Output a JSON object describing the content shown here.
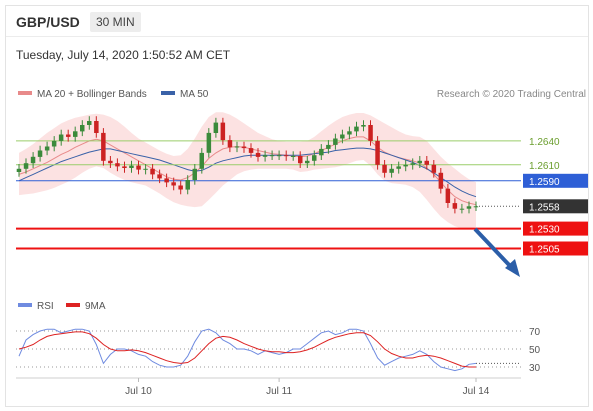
{
  "header": {
    "pair": "GBP/USD",
    "timeframe": "30 MIN"
  },
  "timestamp": "Tuesday, July 14, 2020 1:50:52 AM CET",
  "legend": {
    "ma_bb": "MA 20 + Bollinger Bands",
    "ma50": "MA 50",
    "credit": "Research © 2020 Trading Central"
  },
  "rsi_legend": {
    "rsi": "RSI",
    "ma": "9MA"
  },
  "colors": {
    "candle_up": "#3b8a3b",
    "candle_down": "#cc2222",
    "bollinger_fill": "#fbd8d8",
    "ma20": "#e88a8a",
    "ma50": "#3a62a8",
    "resistance": "#9acd6a",
    "support": "#ee1111",
    "pivot": "#2e5fd6",
    "arrow": "#2b5ea8",
    "rsi": "#6f8be0",
    "rsi_ma": "#dd2222"
  },
  "chart_data": [
    {
      "type": "candlestick",
      "title": "GBP/USD 30 MIN",
      "ylim": [
        1.2468,
        1.2675
      ],
      "x_labels": [
        "Jul 10",
        "Jul 11",
        "Jul 14"
      ],
      "x_label_index": [
        17,
        37,
        65
      ],
      "levels": [
        {
          "value": 1.264,
          "label": "1.2640",
          "kind": "resistance"
        },
        {
          "value": 1.261,
          "label": "1.2610",
          "kind": "resistance"
        },
        {
          "value": 1.259,
          "label": "1.2590",
          "kind": "pivot"
        },
        {
          "value": 1.2558,
          "label": "1.2558",
          "kind": "current"
        },
        {
          "value": 1.253,
          "label": "1.2530",
          "kind": "support"
        },
        {
          "value": 1.2505,
          "label": "1.2505",
          "kind": "support"
        }
      ],
      "close": [
        1.2605,
        1.2612,
        1.262,
        1.2628,
        1.2633,
        1.264,
        1.2648,
        1.2645,
        1.2652,
        1.266,
        1.2665,
        1.265,
        1.2615,
        1.2612,
        1.2608,
        1.2606,
        1.2609,
        1.2604,
        1.2605,
        1.2598,
        1.2593,
        1.2588,
        1.2584,
        1.2579,
        1.2591,
        1.2605,
        1.2625,
        1.265,
        1.2663,
        1.2641,
        1.2632,
        1.2633,
        1.2631,
        1.2625,
        1.262,
        1.2622,
        1.2622,
        1.2622,
        1.2621,
        1.2621,
        1.2612,
        1.2615,
        1.2622,
        1.263,
        1.2635,
        1.2643,
        1.2648,
        1.2652,
        1.2658,
        1.266,
        1.264,
        1.261,
        1.26,
        1.2605,
        1.2608,
        1.261,
        1.2612,
        1.2615,
        1.261,
        1.26,
        1.258,
        1.2562,
        1.2555,
        1.2555,
        1.2558,
        1.2558
      ],
      "ma20": [
        1.2598,
        1.2601,
        1.2605,
        1.2609,
        1.2613,
        1.2618,
        1.2623,
        1.2627,
        1.2632,
        1.2636,
        1.264,
        1.2642,
        1.264,
        1.2635,
        1.263,
        1.2625,
        1.262,
        1.2615,
        1.261,
        1.2605,
        1.26,
        1.2595,
        1.2592,
        1.2591,
        1.2594,
        1.26,
        1.2608,
        1.2618,
        1.2625,
        1.263,
        1.2632,
        1.2633,
        1.2632,
        1.263,
        1.2628,
        1.2626,
        1.2624,
        1.2623,
        1.2622,
        1.2621,
        1.262,
        1.2621,
        1.2624,
        1.2628,
        1.2632,
        1.2636,
        1.264,
        1.2643,
        1.2645,
        1.2645,
        1.264,
        1.2632,
        1.2626,
        1.2622,
        1.2619,
        1.2617,
        1.2615,
        1.2612,
        1.2606,
        1.2598,
        1.2588,
        1.2578,
        1.257,
        1.2565,
        1.2562,
        1.256
      ],
      "ma50": [
        1.259,
        1.2594,
        1.2598,
        1.2602,
        1.2606,
        1.261,
        1.2614,
        1.2617,
        1.262,
        1.2623,
        1.2626,
        1.2628,
        1.263,
        1.263,
        1.2628,
        1.2626,
        1.2624,
        1.2622,
        1.262,
        1.2618,
        1.2616,
        1.2613,
        1.261,
        1.2607,
        1.2604,
        1.2602,
        1.2603,
        1.2607,
        1.2612,
        1.2615,
        1.2617,
        1.2619,
        1.2621,
        1.2622,
        1.2622,
        1.2622,
        1.2622,
        1.2622,
        1.2622,
        1.2622,
        1.2622,
        1.2623,
        1.2624,
        1.2625,
        1.2626,
        1.2628,
        1.2629,
        1.263,
        1.2631,
        1.2631,
        1.263,
        1.2628,
        1.2625,
        1.2622,
        1.2619,
        1.2616,
        1.2613,
        1.2609,
        1.2605,
        1.26,
        1.2594,
        1.2588,
        1.2582,
        1.2577,
        1.2573,
        1.257
      ],
      "bollinger_upper": [
        1.2625,
        1.263,
        1.2636,
        1.2643,
        1.265,
        1.2656,
        1.2662,
        1.2666,
        1.2669,
        1.2671,
        1.2673,
        1.2674,
        1.2673,
        1.267,
        1.2665,
        1.2658,
        1.265,
        1.2643,
        1.2638,
        1.2633,
        1.2628,
        1.2624,
        1.2621,
        1.2622,
        1.263,
        1.2643,
        1.2658,
        1.267,
        1.2676,
        1.2676,
        1.2673,
        1.2668,
        1.2662,
        1.2656,
        1.265,
        1.2646,
        1.2642,
        1.264,
        1.2639,
        1.2639,
        1.2639,
        1.264,
        1.2645,
        1.2652,
        1.2659,
        1.2665,
        1.267,
        1.2673,
        1.2675,
        1.2675,
        1.2672,
        1.2667,
        1.2662,
        1.2657,
        1.2652,
        1.2648,
        1.2646,
        1.2645,
        1.264,
        1.263,
        1.262,
        1.2612,
        1.2605,
        1.2598,
        1.2592,
        1.2588
      ],
      "bollinger_lower": [
        1.2572,
        1.2573,
        1.2574,
        1.2576,
        1.2578,
        1.2581,
        1.2585,
        1.2589,
        1.2594,
        1.26,
        1.2605,
        1.2608,
        1.2606,
        1.26,
        1.2595,
        1.2591,
        1.2588,
        1.2586,
        1.2584,
        1.2579,
        1.2574,
        1.2568,
        1.2563,
        1.256,
        1.2558,
        1.2557,
        1.2558,
        1.2566,
        1.2575,
        1.2584,
        1.2591,
        1.2598,
        1.2602,
        1.2604,
        1.2605,
        1.2605,
        1.2605,
        1.2605,
        1.2605,
        1.2604,
        1.2601,
        1.2602,
        1.2604,
        1.2605,
        1.2606,
        1.2607,
        1.2609,
        1.2612,
        1.2615,
        1.2616,
        1.2609,
        1.2598,
        1.259,
        1.2587,
        1.2586,
        1.2585,
        1.2582,
        1.2576,
        1.2566,
        1.2555,
        1.2545,
        1.2538,
        1.2533,
        1.253,
        1.253,
        1.2532
      ]
    },
    {
      "type": "line",
      "ylim": [
        20,
        80
      ],
      "ticks": [
        70,
        50,
        30
      ],
      "rsi": [
        42,
        60,
        66,
        70,
        72,
        72,
        68,
        70,
        72,
        72,
        70,
        55,
        34,
        44,
        50,
        50,
        48,
        44,
        42,
        36,
        32,
        30,
        30,
        32,
        42,
        58,
        70,
        72,
        68,
        60,
        56,
        50,
        50,
        48,
        44,
        48,
        46,
        44,
        46,
        50,
        50,
        56,
        62,
        68,
        70,
        66,
        68,
        72,
        72,
        70,
        56,
        40,
        32,
        36,
        40,
        42,
        44,
        48,
        44,
        36,
        30,
        28,
        26,
        28,
        33,
        34
      ],
      "rsi_ma": [
        50,
        52,
        55,
        60,
        64,
        66,
        67,
        68,
        69,
        69,
        67,
        62,
        55,
        50,
        48,
        48,
        49,
        48,
        46,
        43,
        40,
        37,
        35,
        34,
        35,
        40,
        48,
        56,
        62,
        64,
        63,
        60,
        56,
        53,
        50,
        48,
        47,
        47,
        46,
        46,
        47,
        49,
        52,
        56,
        60,
        63,
        65,
        67,
        68,
        68,
        65,
        58,
        50,
        45,
        42,
        40,
        40,
        42,
        43,
        42,
        40,
        37,
        34,
        31,
        30,
        30
      ]
    }
  ]
}
